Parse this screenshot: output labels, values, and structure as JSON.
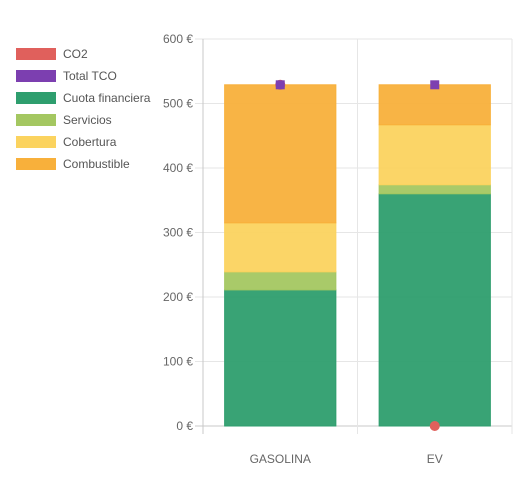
{
  "chart_data": {
    "type": "bar",
    "stacked": true,
    "categories": [
      "GASOLINA",
      "EV"
    ],
    "y_ticks": [
      "0 €",
      "100 €",
      "200 €",
      "300 €",
      "400 €",
      "500 €",
      "600 €"
    ],
    "ylim": [
      0,
      600
    ],
    "grid": true,
    "legend_position": "left",
    "series": [
      {
        "name": "Cuota financiera",
        "color": "#2e9e6e",
        "values": [
          211,
          360
        ]
      },
      {
        "name": "Servicios",
        "color": "#a4c761",
        "values": [
          28,
          14
        ]
      },
      {
        "name": "Cobertura",
        "color": "#fbd35f",
        "values": [
          76,
          93
        ]
      },
      {
        "name": "Combustible",
        "color": "#f8b03b",
        "values": [
          214,
          62
        ]
      }
    ],
    "markers": [
      {
        "name": "CO2",
        "color": "#e0605c",
        "shape": "circle",
        "values": [
          529,
          0
        ]
      },
      {
        "name": "Total TCO",
        "color": "#7c3fb0",
        "shape": "square",
        "values": [
          529,
          529
        ]
      }
    ],
    "legend": [
      {
        "label": "CO2",
        "color": "#e0605c"
      },
      {
        "label": "Total TCO",
        "color": "#7c3fb0"
      },
      {
        "label": "Cuota financiera",
        "color": "#2e9e6e"
      },
      {
        "label": "Servicios",
        "color": "#a4c761"
      },
      {
        "label": "Cobertura",
        "color": "#fbd35f"
      },
      {
        "label": "Combustible",
        "color": "#f8b03b"
      }
    ]
  }
}
